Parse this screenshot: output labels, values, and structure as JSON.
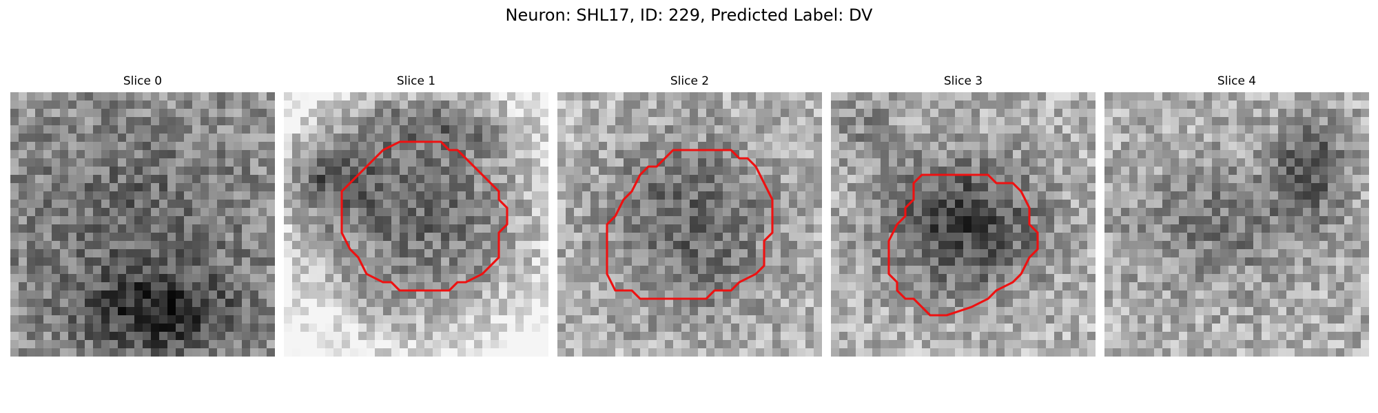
{
  "figure": {
    "title": "Neuron: SHL17, ID: 229, Predicted Label: DV"
  },
  "contour_color": "#ee1111",
  "panels": [
    {
      "title": "Slice 0",
      "has_contour": false
    },
    {
      "title": "Slice 1",
      "has_contour": true
    },
    {
      "title": "Slice 2",
      "has_contour": true
    },
    {
      "title": "Slice 3",
      "has_contour": true
    },
    {
      "title": "Slice 4",
      "has_contour": false
    }
  ]
}
